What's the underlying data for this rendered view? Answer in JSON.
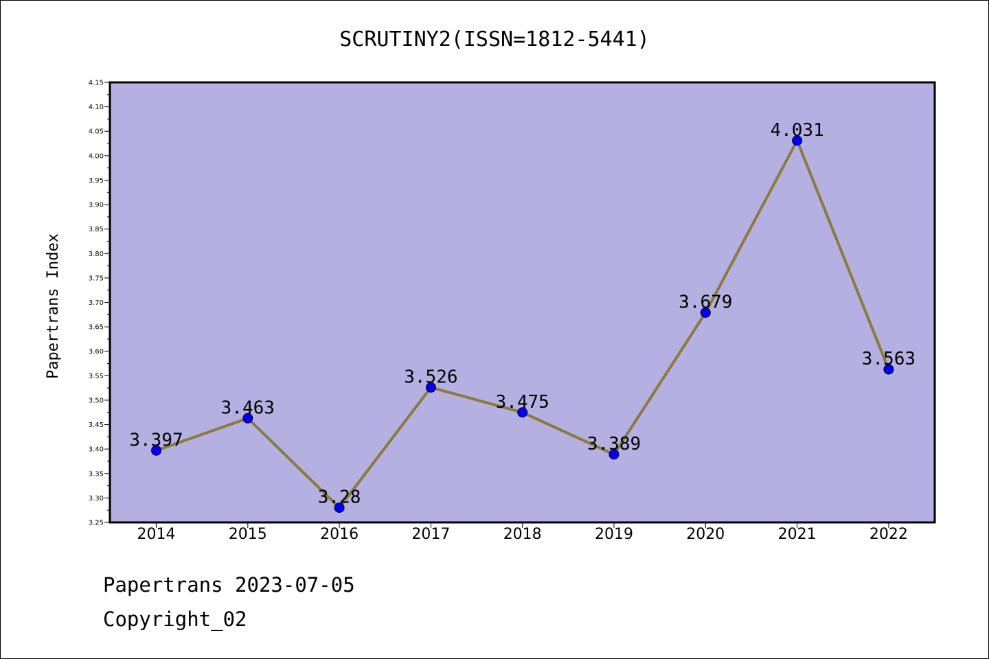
{
  "chart_data": {
    "type": "line",
    "title": "SCRUTINY2(ISSN=1812-5441)",
    "xlabel": "",
    "ylabel": "Papertrans Index",
    "categories": [
      "2014",
      "2015",
      "2016",
      "2017",
      "2018",
      "2019",
      "2020",
      "2021",
      "2022"
    ],
    "series": [
      {
        "values": [
          3.397,
          3.463,
          3.28,
          3.526,
          3.475,
          3.389,
          3.679,
          4.031,
          3.563
        ]
      }
    ],
    "data_labels": [
      "3.397",
      "3.463",
      "3.28",
      "3.526",
      "3.475",
      "3.389",
      "3.679",
      "4.031",
      "3.563"
    ],
    "ylim": [
      3.25,
      4.15
    ],
    "yticks": [
      "3.25",
      "3.30",
      "3.35",
      "3.40",
      "3.45",
      "3.50",
      "3.55",
      "3.60",
      "3.65",
      "3.70",
      "3.75",
      "3.80",
      "3.85",
      "3.90",
      "3.95",
      "4.00",
      "4.05",
      "4.10",
      "4.15"
    ],
    "grid": false,
    "legend": "none",
    "colors": {
      "plot_background": "#b5b0e2",
      "line": "#8b7a3a",
      "marker": "#0000ee"
    }
  },
  "footer": {
    "line1": "Papertrans 2023-07-05",
    "line2": "Copyright_02"
  }
}
